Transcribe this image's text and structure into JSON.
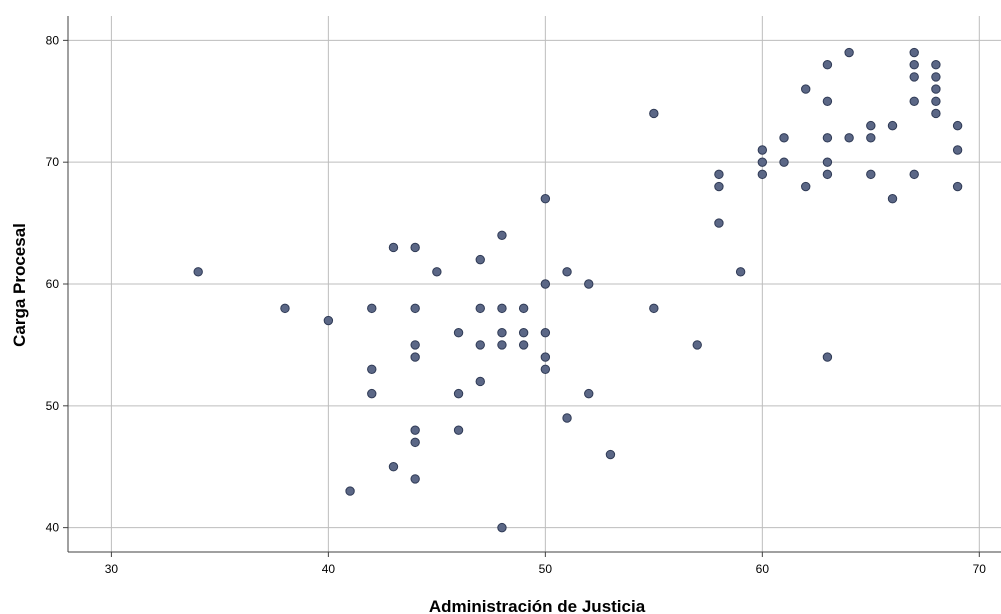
{
  "chart_data": {
    "type": "scatter",
    "title": "",
    "xlabel": "Administración de Justicia",
    "ylabel": "Carga Procesal",
    "xlim": [
      28,
      71
    ],
    "ylim": [
      38,
      82
    ],
    "x_ticks": [
      30,
      40,
      50,
      60,
      70
    ],
    "y_ticks": [
      40,
      50,
      60,
      70,
      80
    ],
    "grid": true,
    "colors": {
      "point_fill": "#5b6786",
      "point_stroke": "#2f3a55",
      "grid": "#bdbdbd",
      "axis": "#404040"
    },
    "points": [
      [
        34,
        61
      ],
      [
        38,
        58
      ],
      [
        40,
        57
      ],
      [
        41,
        43
      ],
      [
        42,
        58
      ],
      [
        42,
        53
      ],
      [
        42,
        51
      ],
      [
        43,
        63
      ],
      [
        43,
        45
      ],
      [
        44,
        63
      ],
      [
        44,
        58
      ],
      [
        44,
        55
      ],
      [
        44,
        54
      ],
      [
        44,
        48
      ],
      [
        44,
        47
      ],
      [
        44,
        44
      ],
      [
        45,
        61
      ],
      [
        46,
        56
      ],
      [
        46,
        51
      ],
      [
        46,
        48
      ],
      [
        47,
        62
      ],
      [
        47,
        58
      ],
      [
        47,
        55
      ],
      [
        47,
        52
      ],
      [
        48,
        64
      ],
      [
        48,
        58
      ],
      [
        48,
        56
      ],
      [
        48,
        55
      ],
      [
        48,
        40
      ],
      [
        49,
        58
      ],
      [
        49,
        56
      ],
      [
        49,
        55
      ],
      [
        50,
        67
      ],
      [
        50,
        60
      ],
      [
        50,
        56
      ],
      [
        50,
        54
      ],
      [
        50,
        53
      ],
      [
        51,
        61
      ],
      [
        51,
        49
      ],
      [
        52,
        60
      ],
      [
        52,
        51
      ],
      [
        53,
        46
      ],
      [
        55,
        74
      ],
      [
        55,
        58
      ],
      [
        57,
        55
      ],
      [
        58,
        69
      ],
      [
        58,
        68
      ],
      [
        58,
        65
      ],
      [
        59,
        61
      ],
      [
        60,
        71
      ],
      [
        60,
        70
      ],
      [
        60,
        69
      ],
      [
        61,
        72
      ],
      [
        61,
        70
      ],
      [
        62,
        76
      ],
      [
        62,
        68
      ],
      [
        63,
        78
      ],
      [
        63,
        75
      ],
      [
        63,
        72
      ],
      [
        63,
        70
      ],
      [
        63,
        69
      ],
      [
        63,
        54
      ],
      [
        64,
        79
      ],
      [
        64,
        72
      ],
      [
        65,
        73
      ],
      [
        65,
        72
      ],
      [
        65,
        69
      ],
      [
        66,
        73
      ],
      [
        66,
        67
      ],
      [
        67,
        79
      ],
      [
        67,
        78
      ],
      [
        67,
        77
      ],
      [
        67,
        75
      ],
      [
        67,
        69
      ],
      [
        68,
        78
      ],
      [
        68,
        77
      ],
      [
        68,
        76
      ],
      [
        68,
        75
      ],
      [
        68,
        74
      ],
      [
        69,
        73
      ],
      [
        69,
        71
      ],
      [
        69,
        68
      ]
    ]
  }
}
